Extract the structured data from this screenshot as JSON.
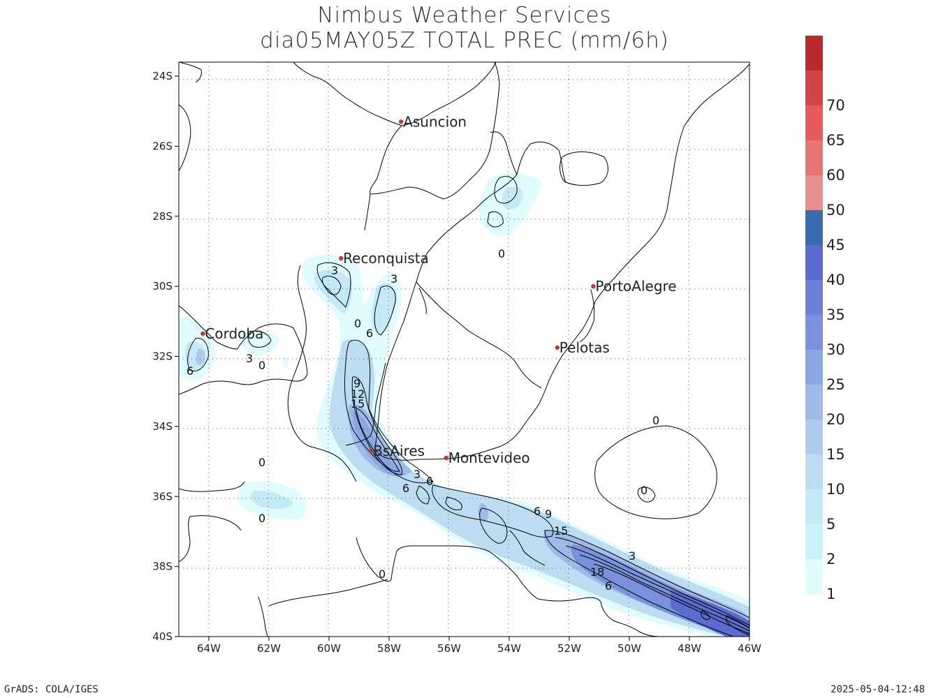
{
  "title": {
    "line1": "Nimbus Weather Services",
    "line2": "dia05MAY05Z TOTAL PREC (mm/6h)"
  },
  "map": {
    "lon_range": [
      -65,
      -46
    ],
    "lat_range": [
      -40,
      -23.6
    ],
    "lon_ticks": [
      "64W",
      "62W",
      "60W",
      "58W",
      "56W",
      "54W",
      "52W",
      "50W",
      "48W",
      "46W"
    ],
    "lat_ticks": [
      "24S",
      "26S",
      "28S",
      "30S",
      "32S",
      "34S",
      "36S",
      "38S",
      "40S"
    ],
    "grid": true
  },
  "cities": [
    {
      "name": "Asuncion",
      "lon": -57.6,
      "lat": -25.3
    },
    {
      "name": "Reconquista",
      "lon": -59.6,
      "lat": -29.2
    },
    {
      "name": "PortoAlegre",
      "lon": -51.2,
      "lat": -30.0
    },
    {
      "name": "Cordoba",
      "lon": -64.2,
      "lat": -31.35
    },
    {
      "name": "Pelotas",
      "lon": -52.4,
      "lat": -31.75
    },
    {
      "name": "BsAires",
      "lon": -58.6,
      "lat": -34.7
    },
    {
      "name": "Montevideo",
      "lon": -56.1,
      "lat": -34.9
    }
  ],
  "contour_labels": [
    "0",
    "0",
    "0",
    "0",
    "0",
    "0",
    "0",
    "0",
    "3",
    "3",
    "3",
    "3",
    "3",
    "6",
    "6",
    "6",
    "6",
    "6",
    "6",
    "9",
    "9",
    "12",
    "15",
    "15",
    "18"
  ],
  "legend": {
    "levels": [
      "1",
      "2",
      "5",
      "10",
      "15",
      "20",
      "25",
      "30",
      "35",
      "40",
      "45",
      "50",
      "60",
      "65",
      "70"
    ],
    "colors": [
      "#e1fcff",
      "#c8f4fa",
      "#c4eaf7",
      "#bcdcf2",
      "#aecbee",
      "#9fbae9",
      "#8aa7e3",
      "#7a92dc",
      "#6b80d6",
      "#5a6ccf",
      "#3b6cb3",
      "#e89090",
      "#e67474",
      "#e85a5a",
      "#d04545",
      "#b82b2b"
    ]
  },
  "footer": {
    "left": "GrADS: COLA/IGES",
    "right": "2025-05-04-12:48"
  }
}
